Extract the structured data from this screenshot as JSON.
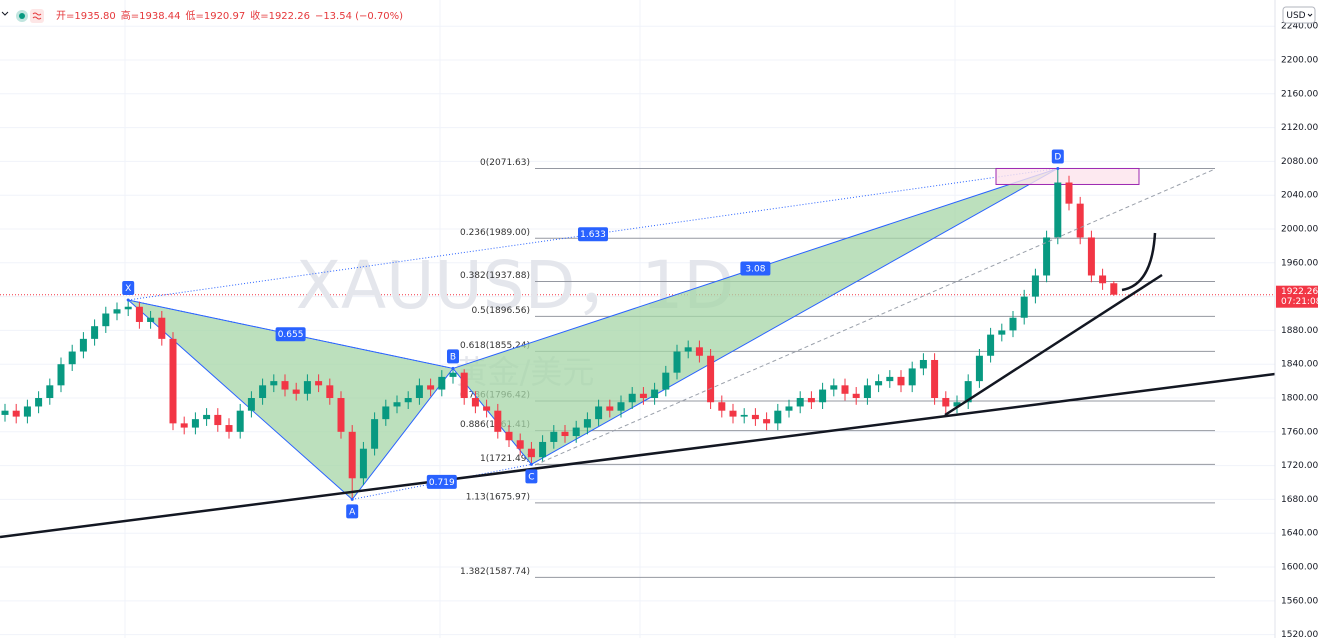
{
  "chart_data": {
    "type": "candlestick",
    "watermark": "XAUUSD，1D",
    "watermark_sub": "黄金/美元",
    "currency": "USD",
    "ohlc_header": [
      "开=1935.80",
      "高=1938.44",
      "低=1920.97",
      "收=1922.26",
      "−13.54 (−0.70%)"
    ],
    "last_price_label": "1922.26",
    "countdown": "07:21:08",
    "ylim": [
      1516,
      2271
    ],
    "yticks": [
      {
        "value": 1520,
        "label": "1520.00"
      },
      {
        "value": 1560,
        "label": "1560.00"
      },
      {
        "value": 1600,
        "label": "1600.00"
      },
      {
        "value": 1640,
        "label": "1640.00"
      },
      {
        "value": 1680,
        "label": "1680.00"
      },
      {
        "value": 1720,
        "label": "1720.00"
      },
      {
        "value": 1760,
        "label": "1760.00"
      },
      {
        "value": 1800,
        "label": "1800.00"
      },
      {
        "value": 1840,
        "label": "1840.00"
      },
      {
        "value": 1880,
        "label": "1880.00"
      },
      {
        "value": 1920,
        "label": "1920.00"
      },
      {
        "value": 1960,
        "label": "1960.00"
      },
      {
        "value": 2000,
        "label": "2000.00"
      },
      {
        "value": 2040,
        "label": "2040.00"
      },
      {
        "value": 2080,
        "label": "2080.00"
      },
      {
        "value": 2120,
        "label": "2120.00"
      },
      {
        "value": 2160,
        "label": "2160.00"
      },
      {
        "value": 2200,
        "label": "2200.00"
      },
      {
        "value": 2240,
        "label": "2240.00"
      }
    ],
    "grid": true,
    "up_color": "#089981",
    "down_color": "#f23645",
    "open": [
      1780,
      1785,
      1778,
      1790,
      1800,
      1815,
      1840,
      1855,
      1870,
      1885,
      1900,
      1905,
      1908,
      1890,
      1895,
      1870,
      1770,
      1765,
      1775,
      1780,
      1768,
      1760,
      1785,
      1800,
      1815,
      1820,
      1810,
      1805,
      1820,
      1815,
      1800,
      1760,
      1705,
      1740,
      1775,
      1790,
      1795,
      1800,
      1815,
      1810,
      1825,
      1830,
      1800,
      1790,
      1785,
      1760,
      1750,
      1740,
      1730,
      1748,
      1760,
      1755,
      1765,
      1775,
      1790,
      1785,
      1795,
      1805,
      1800,
      1810,
      1830,
      1855,
      1860,
      1850,
      1795,
      1785,
      1778,
      1780,
      1775,
      1770,
      1785,
      1790,
      1800,
      1795,
      1810,
      1815,
      1805,
      1800,
      1815,
      1820,
      1825,
      1815,
      1835,
      1845,
      1800,
      1790,
      1795,
      1820,
      1850,
      1875,
      1880,
      1895,
      1920,
      1945,
      1990,
      2055,
      2030,
      1990,
      1945,
      1935.8
    ],
    "high": [
      1793,
      1793,
      1798,
      1808,
      1823,
      1848,
      1863,
      1878,
      1893,
      1908,
      1913,
      1916,
      1914,
      1903,
      1903,
      1878,
      1778,
      1783,
      1788,
      1788,
      1776,
      1793,
      1808,
      1823,
      1828,
      1828,
      1818,
      1828,
      1828,
      1823,
      1808,
      1768,
      1748,
      1783,
      1798,
      1803,
      1808,
      1823,
      1823,
      1833,
      1835,
      1834,
      1808,
      1798,
      1793,
      1768,
      1758,
      1748,
      1756,
      1768,
      1768,
      1773,
      1783,
      1798,
      1798,
      1803,
      1813,
      1813,
      1818,
      1838,
      1863,
      1868,
      1868,
      1858,
      1803,
      1793,
      1788,
      1788,
      1783,
      1793,
      1798,
      1808,
      1808,
      1818,
      1823,
      1823,
      1813,
      1823,
      1828,
      1833,
      1833,
      1843,
      1853,
      1853,
      1808,
      1803,
      1828,
      1858,
      1883,
      1888,
      1903,
      1928,
      1953,
      1998,
      2071.63,
      2063,
      2038,
      1998,
      1953,
      1938.44
    ],
    "low": [
      1772,
      1770,
      1770,
      1782,
      1792,
      1807,
      1832,
      1847,
      1862,
      1877,
      1892,
      1897,
      1882,
      1882,
      1862,
      1762,
      1757,
      1757,
      1767,
      1760,
      1752,
      1752,
      1777,
      1792,
      1807,
      1802,
      1797,
      1797,
      1807,
      1792,
      1752,
      1680,
      1697,
      1732,
      1767,
      1782,
      1787,
      1792,
      1802,
      1802,
      1817,
      1792,
      1782,
      1777,
      1752,
      1742,
      1732,
      1721.49,
      1724,
      1740,
      1747,
      1747,
      1757,
      1767,
      1777,
      1777,
      1787,
      1792,
      1792,
      1802,
      1822,
      1847,
      1842,
      1787,
      1777,
      1770,
      1770,
      1767,
      1762,
      1762,
      1777,
      1782,
      1787,
      1787,
      1802,
      1797,
      1792,
      1792,
      1807,
      1812,
      1807,
      1807,
      1827,
      1792,
      1779,
      1782,
      1787,
      1812,
      1842,
      1867,
      1872,
      1887,
      1912,
      1937,
      1982,
      2022,
      1982,
      1937,
      1928,
      1920.97
    ],
    "close": [
      1785,
      1778,
      1790,
      1800,
      1815,
      1840,
      1855,
      1870,
      1885,
      1900,
      1905,
      1908,
      1890,
      1895,
      1870,
      1770,
      1765,
      1775,
      1780,
      1768,
      1760,
      1785,
      1800,
      1815,
      1820,
      1810,
      1805,
      1820,
      1815,
      1800,
      1760,
      1705,
      1740,
      1775,
      1790,
      1795,
      1800,
      1815,
      1810,
      1825,
      1830,
      1800,
      1790,
      1785,
      1760,
      1750,
      1740,
      1730,
      1748,
      1760,
      1755,
      1765,
      1775,
      1790,
      1785,
      1795,
      1805,
      1800,
      1810,
      1830,
      1855,
      1860,
      1850,
      1795,
      1785,
      1778,
      1780,
      1775,
      1770,
      1785,
      1790,
      1800,
      1795,
      1810,
      1815,
      1805,
      1800,
      1815,
      1820,
      1825,
      1815,
      1835,
      1845,
      1800,
      1790,
      1795,
      1820,
      1850,
      1875,
      1880,
      1895,
      1920,
      1945,
      1990,
      2055,
      2030,
      1990,
      1945,
      1935.8,
      1922.26
    ],
    "pattern": {
      "points": [
        {
          "label": "X",
          "index": 11,
          "price": 1916
        },
        {
          "label": "A",
          "index": 31,
          "price": 1680
        },
        {
          "label": "B",
          "index": 40,
          "price": 1835
        },
        {
          "label": "C",
          "index": 47,
          "price": 1721.49
        },
        {
          "label": "D",
          "index": 94,
          "price": 2071.63
        }
      ],
      "legs": [
        {
          "label": "0.655",
          "from": "X",
          "to": "B"
        },
        {
          "label": "0.719",
          "from": "A",
          "to": "C"
        },
        {
          "label": "1.633",
          "from": "X",
          "to": "D"
        },
        {
          "label": "3.08",
          "from": "B",
          "to": "D"
        }
      ]
    },
    "fib_levels": [
      {
        "value": 2071.63,
        "label": "0(2071.63)"
      },
      {
        "value": 1989.0,
        "label": "0.236(1989.00)"
      },
      {
        "value": 1937.88,
        "label": "0.382(1937.88)"
      },
      {
        "value": 1896.56,
        "label": "0.5(1896.56)"
      },
      {
        "value": 1855.24,
        "label": "0.618(1855.24)"
      },
      {
        "value": 1796.42,
        "label": "0.786(1796.42)"
      },
      {
        "value": 1761.41,
        "label": "0.886(1761.41)"
      },
      {
        "value": 1721.49,
        "label": "1(1721.49)"
      },
      {
        "value": 1675.97,
        "label": "1.13(1675.97)"
      },
      {
        "value": 1587.74,
        "label": "1.382(1587.74)"
      }
    ]
  }
}
